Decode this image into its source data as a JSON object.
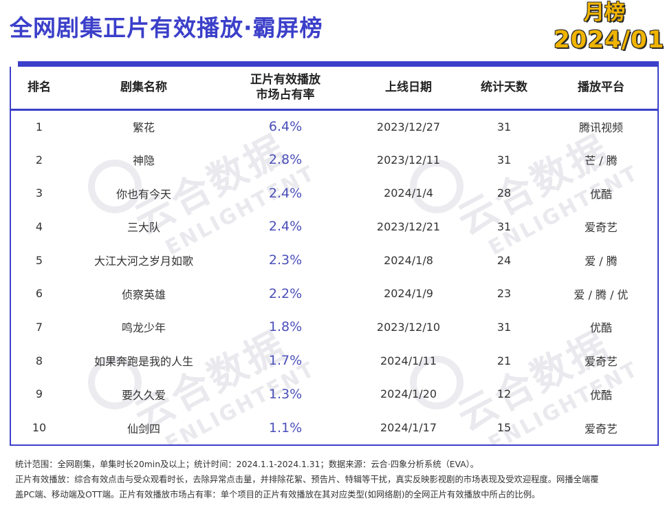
{
  "title": "全网剧集正片有效播放·霸屏榜",
  "badge": {
    "period": "月榜",
    "date": "2024/01"
  },
  "watermark": {
    "cn": "云合数据",
    "en": "ENLIGHTENT"
  },
  "table": {
    "headers": {
      "rank": "排名",
      "name": "剧集名称",
      "share_line1": "正片有效播放",
      "share_line2": "市场占有率",
      "date": "上线日期",
      "days": "统计天数",
      "platform": "播放平台"
    },
    "rows": [
      {
        "rank": "1",
        "name": "繁花",
        "share": "6.4%",
        "date": "2023/12/27",
        "days": "31",
        "platform": "腾讯视频"
      },
      {
        "rank": "2",
        "name": "神隐",
        "share": "2.8%",
        "date": "2023/12/11",
        "days": "31",
        "platform": "芒 / 腾"
      },
      {
        "rank": "3",
        "name": "你也有今天",
        "share": "2.4%",
        "date": "2024/1/4",
        "days": "28",
        "platform": "优酷"
      },
      {
        "rank": "4",
        "name": "三大队",
        "share": "2.4%",
        "date": "2023/12/21",
        "days": "31",
        "platform": "爱奇艺"
      },
      {
        "rank": "5",
        "name": "大江大河之岁月如歌",
        "share": "2.3%",
        "date": "2024/1/8",
        "days": "24",
        "platform": "爱 / 腾"
      },
      {
        "rank": "6",
        "name": "侦察英雄",
        "share": "2.2%",
        "date": "2024/1/9",
        "days": "23",
        "platform": "爱 / 腾 / 优"
      },
      {
        "rank": "7",
        "name": "鸣龙少年",
        "share": "1.8%",
        "date": "2023/12/10",
        "days": "31",
        "platform": "优酷"
      },
      {
        "rank": "8",
        "name": "如果奔跑是我的人生",
        "share": "1.7%",
        "date": "2024/1/11",
        "days": "21",
        "platform": "爱奇艺"
      },
      {
        "rank": "9",
        "name": "要久久爱",
        "share": "1.3%",
        "date": "2024/1/20",
        "days": "12",
        "platform": "优酷"
      },
      {
        "rank": "10",
        "name": "仙剑四",
        "share": "1.1%",
        "date": "2024/1/17",
        "days": "15",
        "platform": "爱奇艺"
      }
    ]
  },
  "footnotes": [
    "统计范围：全网剧集，单集时长20min及以上；统计时间：2024.1.1-2024.1.31；数据来源：云合·四象分析系统（EVA）。",
    "正片有效播放：综合有效点击与受众观看时长，去除异常点击量，并排除花絮、预告片、特辑等干扰，真实反映影视剧的市场表现及受欢迎程度。网播全端覆",
    "盖PC端、移动端及OTT端。正片有效播放市场占有率：单个项目的正片有效播放在其对应类型(如网络剧)的全网正片有效播放中所占的比例。"
  ]
}
